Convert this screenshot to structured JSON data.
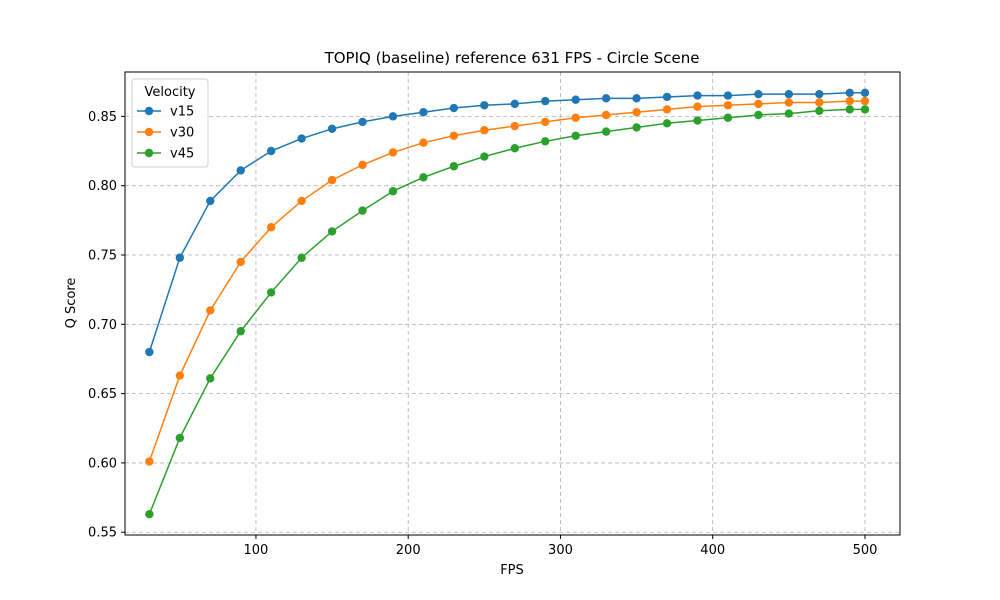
{
  "chart_data": {
    "type": "line",
    "title": "TOPIQ (baseline) reference 631 FPS - Circle Scene",
    "xlabel": "FPS",
    "ylabel": "Q Score",
    "xlim": [
      14,
      523
    ],
    "ylim": [
      0.548,
      0.882
    ],
    "xticks": [
      100,
      200,
      300,
      400,
      500
    ],
    "yticks": [
      0.55,
      0.6,
      0.65,
      0.7,
      0.75,
      0.8,
      0.85
    ],
    "ytick_labels": [
      "0.55",
      "0.60",
      "0.65",
      "0.70",
      "0.75",
      "0.80",
      "0.85"
    ],
    "grid": true,
    "legend": {
      "title": "Velocity",
      "placement": "top-left"
    },
    "x": [
      30,
      50,
      70,
      90,
      110,
      130,
      150,
      170,
      190,
      210,
      230,
      250,
      270,
      290,
      310,
      330,
      350,
      370,
      390,
      410,
      430,
      450,
      470,
      490,
      500
    ],
    "series": [
      {
        "name": "v15",
        "color": "#1f77b4",
        "values": [
          0.68,
          0.748,
          0.789,
          0.811,
          0.825,
          0.834,
          0.841,
          0.846,
          0.85,
          0.853,
          0.856,
          0.858,
          0.859,
          0.861,
          0.862,
          0.863,
          0.863,
          0.864,
          0.865,
          0.865,
          0.866,
          0.866,
          0.866,
          0.867,
          0.867
        ]
      },
      {
        "name": "v30",
        "color": "#ff7f0e",
        "values": [
          0.601,
          0.663,
          0.71,
          0.745,
          0.77,
          0.789,
          0.804,
          0.815,
          0.824,
          0.831,
          0.836,
          0.84,
          0.843,
          0.846,
          0.849,
          0.851,
          0.853,
          0.855,
          0.857,
          0.858,
          0.859,
          0.86,
          0.86,
          0.861,
          0.861
        ]
      },
      {
        "name": "v45",
        "color": "#2ca02c",
        "values": [
          0.563,
          0.618,
          0.661,
          0.695,
          0.723,
          0.748,
          0.767,
          0.782,
          0.796,
          0.806,
          0.814,
          0.821,
          0.827,
          0.832,
          0.836,
          0.839,
          0.842,
          0.845,
          0.847,
          0.849,
          0.851,
          0.852,
          0.854,
          0.855,
          0.855
        ]
      }
    ]
  }
}
